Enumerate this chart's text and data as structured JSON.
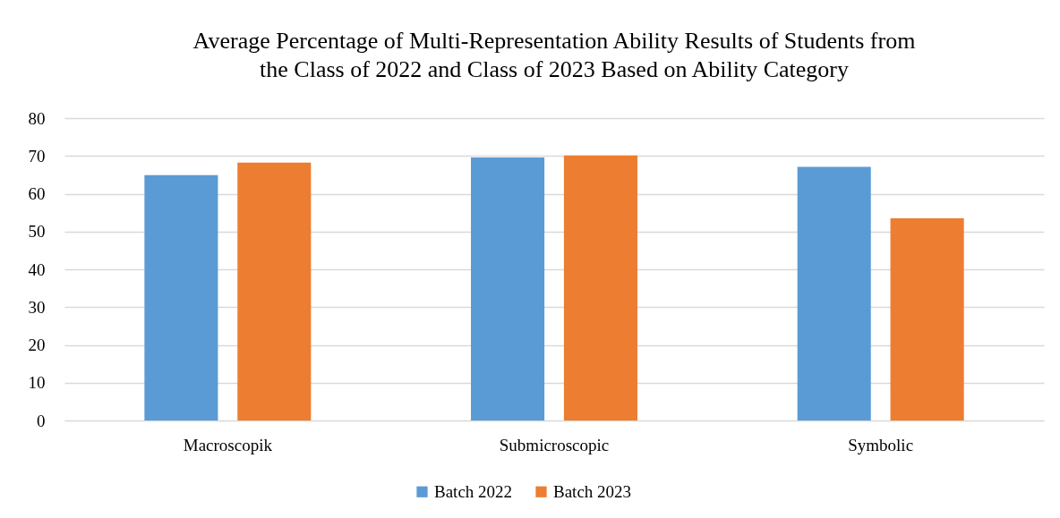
{
  "chart_data": {
    "type": "bar",
    "title": "Average Percentage of Multi-Representation Ability Results of Students from\nthe Class of 2022 and Class of 2023 Based on Ability Category",
    "categories": [
      "Macroscopik",
      "Submicroscopic",
      "Symbolic"
    ],
    "series": [
      {
        "name": "Batch  2022",
        "color": "#5b9bd5",
        "values": [
          64.9,
          69.6,
          67.1
        ]
      },
      {
        "name": "Batch 2023",
        "color": "#ed7d31",
        "values": [
          68.2,
          70.1,
          53.5
        ]
      }
    ],
    "ylim": [
      0,
      80
    ],
    "yticks": [
      0,
      10,
      20,
      30,
      40,
      50,
      60,
      70,
      80
    ],
    "grid": "y",
    "legend": "bottom"
  }
}
